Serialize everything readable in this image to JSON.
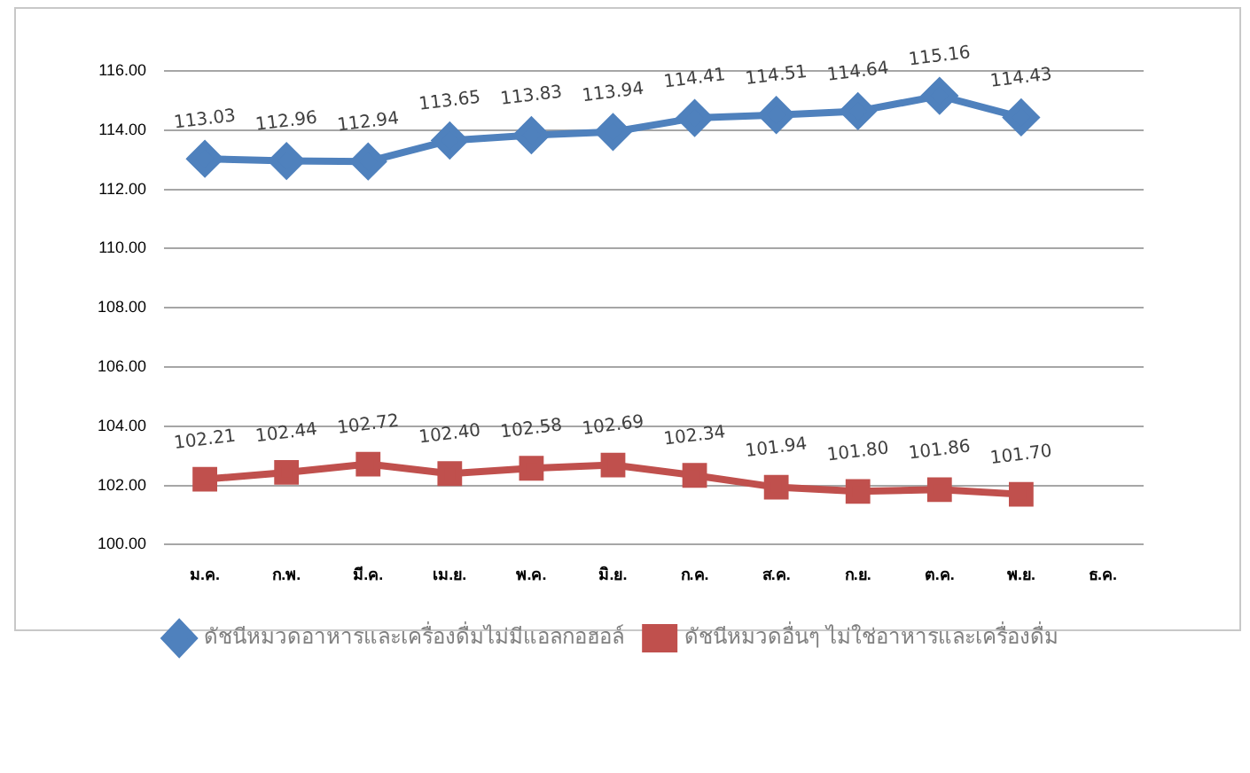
{
  "chart_data": {
    "type": "line",
    "categories": [
      "ม.ค.",
      "ก.พ.",
      "มี.ค.",
      "เม.ย.",
      "พ.ค.",
      "มิ.ย.",
      "ก.ค.",
      "ส.ค.",
      "ก.ย.",
      "ต.ค.",
      "พ.ย.",
      "ธ.ค."
    ],
    "series": [
      {
        "name": "ดัชนีหมวดอาหารและเครื่องดื่มไม่มีแอลกอฮอล์",
        "color": "#4f81bd",
        "marker": "diamond",
        "values": [
          113.03,
          112.96,
          112.94,
          113.65,
          113.83,
          113.94,
          114.41,
          114.51,
          114.64,
          115.16,
          114.43,
          null
        ],
        "value_labels": [
          "113.03",
          "112.96",
          "112.94",
          "113.65",
          "113.83",
          "113.94",
          "114.41",
          "114.51",
          "114.64",
          "115.16",
          "114.43",
          null
        ]
      },
      {
        "name": "ดัชนีหมวดอื่นๆ ไม่ใช่อาหารและเครื่องดื่ม",
        "color": "#c0504d",
        "marker": "square",
        "values": [
          102.21,
          102.44,
          102.72,
          102.4,
          102.58,
          102.69,
          102.34,
          101.94,
          101.8,
          101.86,
          101.7,
          null
        ],
        "value_labels": [
          "102.21",
          "102.44",
          "102.72",
          "102.40",
          "102.58",
          "102.69",
          "102.34",
          "101.94",
          "101.80",
          "101.86",
          "101.70",
          null
        ]
      }
    ],
    "ylim": [
      100,
      116
    ],
    "yticks": [
      {
        "value": 100,
        "label": "100.00"
      },
      {
        "value": 102,
        "label": "102.00"
      },
      {
        "value": 104,
        "label": "104.00"
      },
      {
        "value": 106,
        "label": "106.00"
      },
      {
        "value": 108,
        "label": "108.00"
      },
      {
        "value": 110,
        "label": "110.00"
      },
      {
        "value": 112,
        "label": "112.00"
      },
      {
        "value": 114,
        "label": "114.00"
      },
      {
        "value": 116,
        "label": "116.00"
      }
    ],
    "grid": "y",
    "legend": "bottom"
  }
}
